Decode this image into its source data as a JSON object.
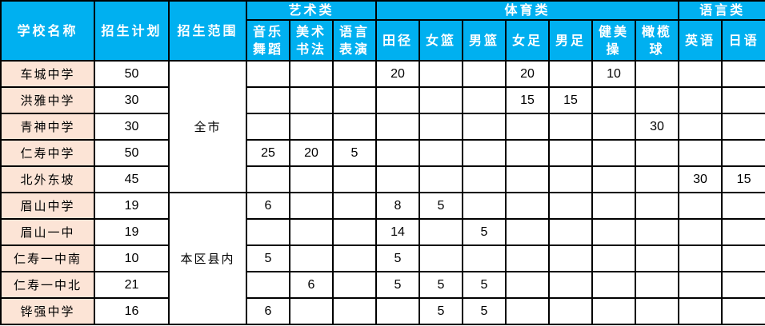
{
  "colors": {
    "header_bg": "#00B0F0",
    "school_bg": "#FCE4D6"
  },
  "headers": {
    "school": "学校名称",
    "plan": "招生计划",
    "scope": "招生范围",
    "groups": [
      {
        "label": "艺术类"
      },
      {
        "label": "体育类"
      },
      {
        "label": "语言类"
      }
    ],
    "subjects": [
      "音乐舞蹈",
      "美术书法",
      "语言表演",
      "田径",
      "女篮",
      "男篮",
      "女足",
      "男足",
      "健美操",
      "橄榄球",
      "英语",
      "日语"
    ]
  },
  "scopes": [
    {
      "label": "全市",
      "rows": 5
    },
    {
      "label": "本区县内",
      "rows": 5
    }
  ],
  "rows": [
    {
      "school": "车城中学",
      "plan": "50",
      "values": [
        "",
        "",
        "",
        "20",
        "",
        "",
        "20",
        "",
        "10",
        "",
        "",
        ""
      ]
    },
    {
      "school": "洪雅中学",
      "plan": "30",
      "values": [
        "",
        "",
        "",
        "",
        "",
        "",
        "15",
        "15",
        "",
        "",
        "",
        ""
      ]
    },
    {
      "school": "青神中学",
      "plan": "30",
      "values": [
        "",
        "",
        "",
        "",
        "",
        "",
        "",
        "",
        "",
        "30",
        "",
        ""
      ]
    },
    {
      "school": "仁寿中学",
      "plan": "50",
      "values": [
        "25",
        "20",
        "5",
        "",
        "",
        "",
        "",
        "",
        "",
        "",
        "",
        ""
      ]
    },
    {
      "school": "北外东坡",
      "plan": "45",
      "values": [
        "",
        "",
        "",
        "",
        "",
        "",
        "",
        "",
        "",
        "",
        "30",
        "15"
      ]
    },
    {
      "school": "眉山中学",
      "plan": "19",
      "values": [
        "6",
        "",
        "",
        "8",
        "5",
        "",
        "",
        "",
        "",
        "",
        "",
        ""
      ]
    },
    {
      "school": "眉山一中",
      "plan": "19",
      "values": [
        "",
        "",
        "",
        "14",
        "",
        "5",
        "",
        "",
        "",
        "",
        "",
        ""
      ]
    },
    {
      "school": "仁寿一中南",
      "plan": "10",
      "values": [
        "5",
        "",
        "",
        "5",
        "",
        "",
        "",
        "",
        "",
        "",
        "",
        ""
      ]
    },
    {
      "school": "仁寿一中北",
      "plan": "21",
      "values": [
        "",
        "6",
        "",
        "5",
        "5",
        "5",
        "",
        "",
        "",
        "",
        "",
        ""
      ]
    },
    {
      "school": "铧强中学",
      "plan": "16",
      "values": [
        "6",
        "",
        "",
        "",
        "5",
        "5",
        "",
        "",
        "",
        "",
        "",
        ""
      ]
    }
  ]
}
